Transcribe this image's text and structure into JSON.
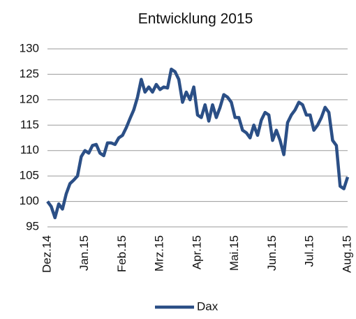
{
  "chart_data": {
    "type": "line",
    "title": "Entwicklung 2015",
    "categories": [
      "Dez.14",
      null,
      null,
      null,
      null,
      null,
      null,
      null,
      null,
      null,
      "Jan.15",
      null,
      null,
      null,
      null,
      null,
      null,
      null,
      null,
      null,
      "Feb.15",
      null,
      null,
      null,
      null,
      null,
      null,
      null,
      null,
      null,
      "Mrz.15",
      null,
      null,
      null,
      null,
      null,
      null,
      null,
      null,
      null,
      "Apr.15",
      null,
      null,
      null,
      null,
      null,
      null,
      null,
      null,
      null,
      "Mai.15",
      null,
      null,
      null,
      null,
      null,
      null,
      null,
      null,
      null,
      "Jun.15",
      null,
      null,
      null,
      null,
      null,
      null,
      null,
      null,
      null,
      "Jul.15",
      null,
      null,
      null,
      null,
      null,
      null,
      null,
      null,
      null,
      "Aug.15"
    ],
    "series": [
      {
        "name": "Dax",
        "color": "#2b4f86",
        "values": [
          100,
          99,
          96.8,
          99.5,
          98.5,
          101.5,
          103.5,
          104.2,
          105,
          108.8,
          110,
          109.5,
          111,
          111.2,
          109.5,
          109,
          111.5,
          111.5,
          111.2,
          112.5,
          113,
          114.5,
          116.3,
          118,
          120.5,
          124,
          121.5,
          122.5,
          121.5,
          123,
          122,
          122.5,
          122.3,
          126,
          125.5,
          124,
          119.5,
          121.5,
          120,
          122.5,
          117,
          116.5,
          119,
          115.8,
          119,
          116.5,
          118.5,
          121,
          120.5,
          119.5,
          116.5,
          116.5,
          114,
          113.5,
          112.5,
          115,
          113,
          116,
          117.5,
          117,
          112,
          114,
          112,
          109.2,
          115.5,
          117,
          118,
          119.5,
          119,
          117,
          117,
          114,
          115,
          116.5,
          118.5,
          117.5,
          112,
          111,
          103,
          102.5,
          104.8
        ]
      }
    ],
    "ylim": [
      95,
      130
    ],
    "yticks": [
      95,
      100,
      105,
      110,
      115,
      120,
      125,
      130
    ],
    "grid": true
  }
}
